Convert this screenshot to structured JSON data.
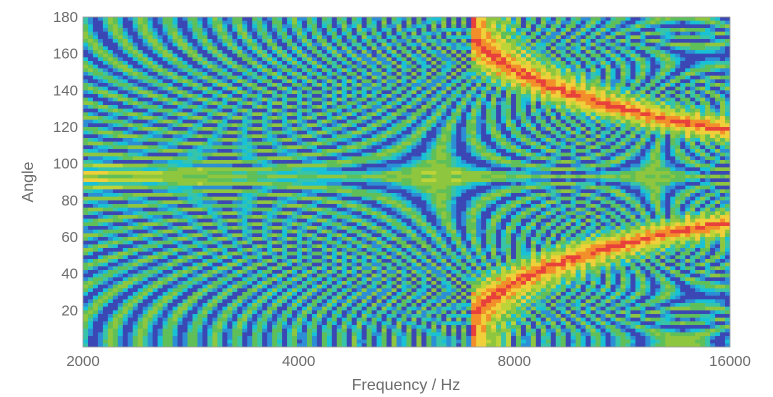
{
  "chart_data": {
    "type": "heatmap",
    "title": "",
    "xlabel": "Frequency / Hz",
    "ylabel": "Angle",
    "x_scale": "log2",
    "xlim": [
      2000,
      16000
    ],
    "ylim": [
      0,
      180
    ],
    "x_ticks": [
      2000,
      4000,
      8000,
      16000
    ],
    "x_tick_labels": [
      "2000",
      "4000",
      "8000",
      "16000"
    ],
    "y_ticks": [
      20,
      40,
      60,
      80,
      100,
      120,
      140,
      160,
      180
    ],
    "y_tick_labels": [
      "20",
      "40",
      "60",
      "80",
      "100",
      "120",
      "140",
      "160",
      "180"
    ],
    "grid": false,
    "colorbar": false,
    "colormap": [
      "#3b47b4",
      "#2c8fd6",
      "#18c1d6",
      "#38c4a8",
      "#5fbf58",
      "#8ec63f",
      "#bcd437",
      "#f0d03a",
      "#f28f2b",
      "#e8413c"
    ],
    "features": [
      {
        "name": "main-lobe",
        "angle_center": 87,
        "description": "strong band around 80–95 deg narrowing with frequency"
      },
      {
        "name": "grating-lobe-upper",
        "start_freq": 7500,
        "angle_range": [
          180,
          120
        ]
      },
      {
        "name": "grating-lobe-lower",
        "start_freq": 7500,
        "angle_range": [
          0,
          60
        ]
      }
    ]
  }
}
